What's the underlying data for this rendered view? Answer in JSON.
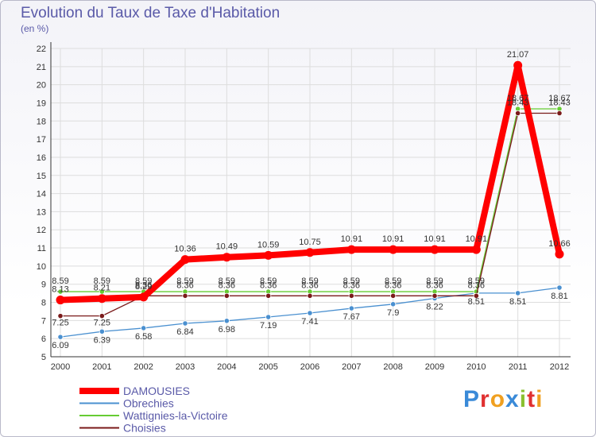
{
  "header": {
    "title": "Evolution du Taux de Taxe d'Habitation",
    "unit": "(en %)"
  },
  "brand": {
    "name": "Proxiti"
  },
  "chart_data": {
    "type": "line",
    "title": "Evolution du Taux de Taxe d'Habitation",
    "ylabel": "(en %)",
    "xlabel": "",
    "x": [
      "2000",
      "2001",
      "2002",
      "2003",
      "2004",
      "2005",
      "2006",
      "2007",
      "2008",
      "2009",
      "2010",
      "2011",
      "2012"
    ],
    "ylim": [
      5,
      22
    ],
    "yticks": [
      5,
      6,
      7,
      8,
      9,
      10,
      11,
      12,
      13,
      14,
      15,
      16,
      17,
      18,
      19,
      20,
      21,
      22
    ],
    "grid": true,
    "legend": "bottom-left",
    "series": [
      {
        "name": "DAMOUSIES",
        "color": "#ff0000",
        "values": [
          8.13,
          8.21,
          8.29,
          10.36,
          10.49,
          10.59,
          10.75,
          10.91,
          10.91,
          10.91,
          10.91,
          21.07,
          10.66
        ],
        "labels": [
          "8.13",
          "8.21",
          "8.29",
          "10.36",
          "10.49",
          "10.59",
          "10.75",
          "10.91",
          "10.91",
          "10.91",
          "10.91",
          "21.07",
          "10.66"
        ]
      },
      {
        "name": "Obrechies",
        "color": "#4a90d0",
        "values": [
          6.09,
          6.39,
          6.58,
          6.84,
          6.98,
          7.19,
          7.41,
          7.67,
          7.9,
          8.22,
          8.51,
          8.51,
          8.81
        ],
        "labels": [
          "6.09",
          "6.39",
          "6.58",
          "6.84",
          "6.98",
          "7.19",
          "7.41",
          "7.67",
          "7.9",
          "8.22",
          "8.51",
          "8.51",
          "8.81"
        ]
      },
      {
        "name": "Wattignies-la-Victoire",
        "color": "#66cc33",
        "values": [
          8.59,
          8.59,
          8.59,
          8.59,
          8.59,
          8.59,
          8.59,
          8.59,
          8.59,
          8.59,
          8.59,
          18.67,
          18.67
        ],
        "labels": [
          "8.59",
          "8.59",
          "8.59",
          "8.59",
          "8.59",
          "8.59",
          "8.59",
          "8.59",
          "8.59",
          "8.59",
          "8.59",
          "18.67",
          "18.67"
        ]
      },
      {
        "name": "Choisies",
        "color": "#7a1a1a",
        "values": [
          7.25,
          7.25,
          8.36,
          8.36,
          8.36,
          8.36,
          8.36,
          8.36,
          8.36,
          8.36,
          8.36,
          18.43,
          18.43
        ],
        "labels": [
          "7.25",
          "7.25",
          "8.36",
          "8.36",
          "8.36",
          "8.36",
          "8.36",
          "8.36",
          "8.36",
          "8.36",
          "8.36",
          "18.43",
          "18.43"
        ]
      }
    ]
  }
}
